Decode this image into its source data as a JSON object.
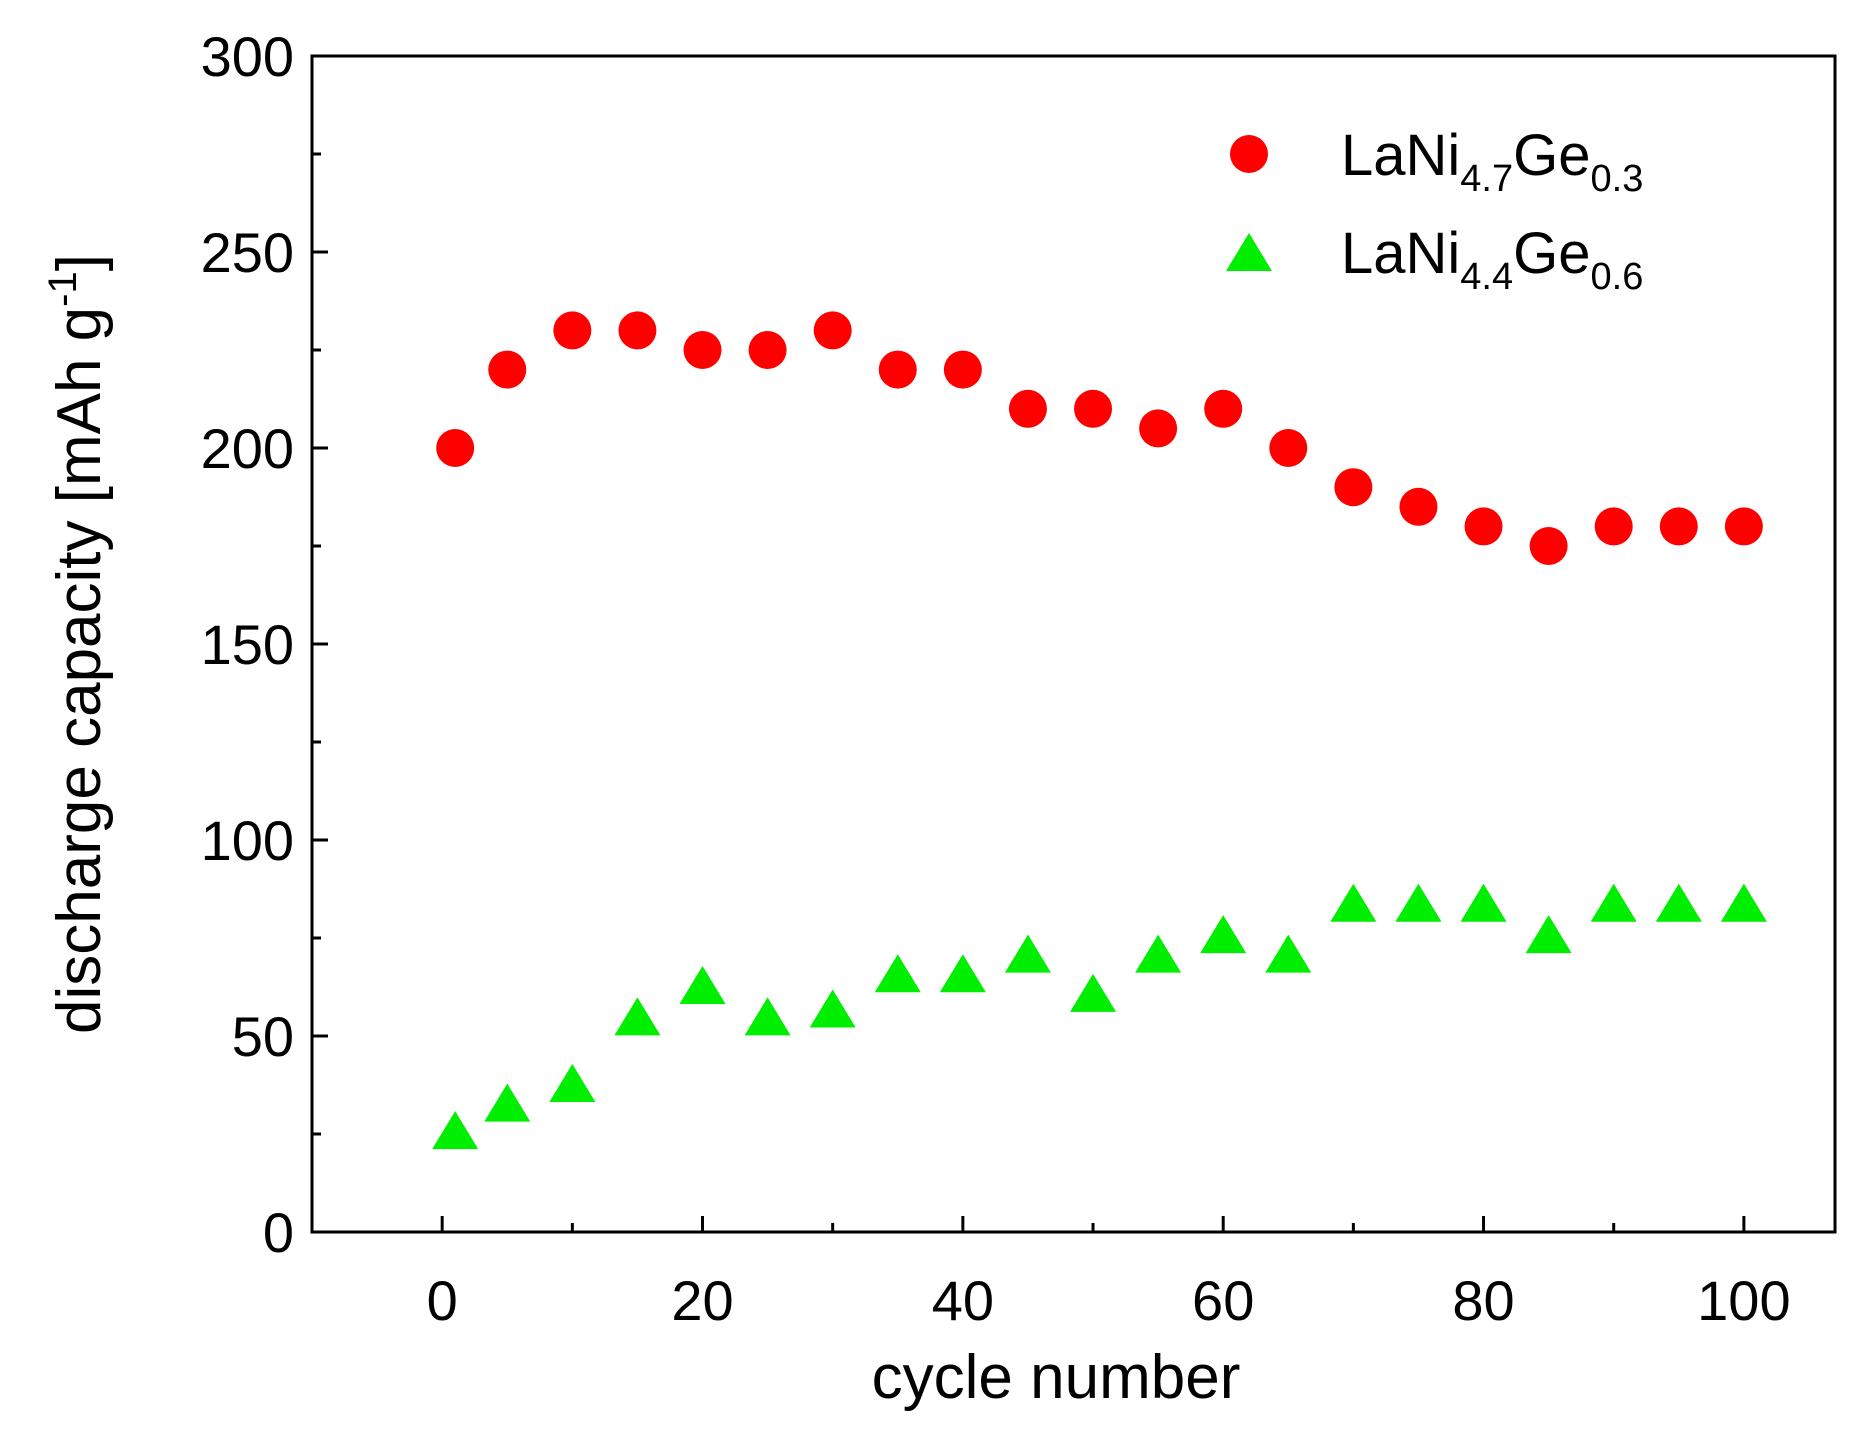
{
  "chart_data": {
    "type": "scatter",
    "title": "",
    "xlabel": "cycle number",
    "ylabel": {
      "main": "discharge capacity [mAh g",
      "superscript": "-1",
      "close": "]"
    },
    "xlim": [
      -10,
      107
    ],
    "ylim": [
      0,
      300
    ],
    "x_ticks": [
      0,
      20,
      40,
      60,
      80,
      100
    ],
    "y_ticks": [
      0,
      50,
      100,
      150,
      200,
      250,
      300
    ],
    "x_minor_ticks": [
      10,
      30,
      50,
      70,
      90
    ],
    "y_minor_ticks": [
      25,
      75,
      125,
      175,
      225,
      275
    ],
    "grid": false,
    "legend_position": "top-right",
    "series": [
      {
        "name": "LaNi4.7Ge0.3",
        "label": {
          "base1": "LaNi",
          "sub1": "4.7",
          "base2": "Ge",
          "sub2": "0.3"
        },
        "marker": "circle",
        "color": "#ff0000",
        "x": [
          1,
          5,
          10,
          15,
          20,
          25,
          30,
          35,
          40,
          45,
          50,
          55,
          60,
          65,
          70,
          75,
          80,
          85,
          90,
          95,
          100
        ],
        "y": [
          200,
          220,
          230,
          230,
          225,
          225,
          230,
          220,
          220,
          210,
          210,
          205,
          210,
          200,
          190,
          185,
          180,
          175,
          180,
          180,
          180
        ]
      },
      {
        "name": "LaNi4.4Ge0.6",
        "label": {
          "base1": "LaNi",
          "sub1": "4.4",
          "base2": "Ge",
          "sub2": "0.6"
        },
        "marker": "triangle",
        "color": "#00ee00",
        "x": [
          1,
          5,
          10,
          15,
          20,
          25,
          30,
          35,
          40,
          45,
          50,
          55,
          60,
          65,
          70,
          75,
          80,
          85,
          90,
          95,
          100
        ],
        "y": [
          26,
          33,
          38,
          55,
          63,
          55,
          57,
          66,
          66,
          71,
          61,
          71,
          76,
          71,
          84,
          84,
          84,
          76,
          84,
          84,
          84
        ]
      }
    ]
  }
}
